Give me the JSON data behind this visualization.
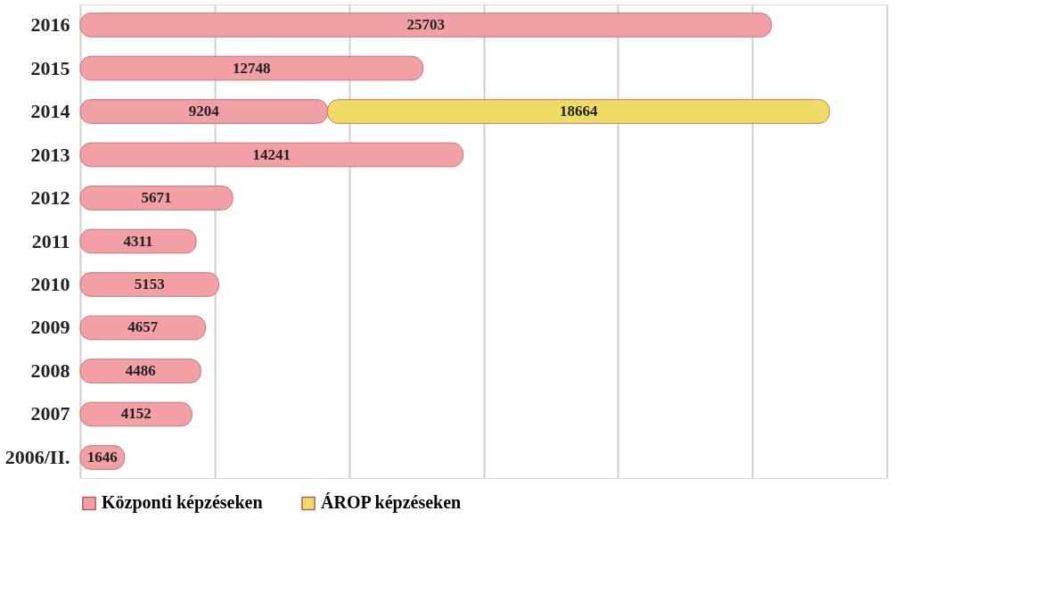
{
  "chart_data": {
    "type": "bar",
    "orientation": "horizontal",
    "stacked": true,
    "data_labels": true,
    "categories": [
      "2016",
      "2015",
      "2014",
      "2013",
      "2012",
      "2011",
      "2010",
      "2009",
      "2008",
      "2007",
      "2006/II."
    ],
    "series": [
      {
        "name": "Központi képzéseken",
        "color": "#f2a0a6",
        "values": [
          25703,
          12748,
          9204,
          14241,
          5671,
          4311,
          5153,
          4657,
          4486,
          4152,
          1646
        ]
      },
      {
        "name": "ÁROP képzéseken",
        "color": "#f0dc64",
        "values": [
          null,
          null,
          18664,
          null,
          null,
          null,
          null,
          null,
          null,
          null,
          null
        ]
      }
    ],
    "xlim": [
      0,
      30000
    ],
    "xticks": [
      {
        "value": 0,
        "label": null
      },
      {
        "value": 5000,
        "label": null
      },
      {
        "value": 10000,
        "label": null
      },
      {
        "value": 15000,
        "label": null
      },
      {
        "value": 20000,
        "label": null
      },
      {
        "value": 25000,
        "label": null
      },
      {
        "value": 30000,
        "label": null
      }
    ],
    "tick_labels": "y",
    "grid": "x",
    "legend": "bottom"
  }
}
